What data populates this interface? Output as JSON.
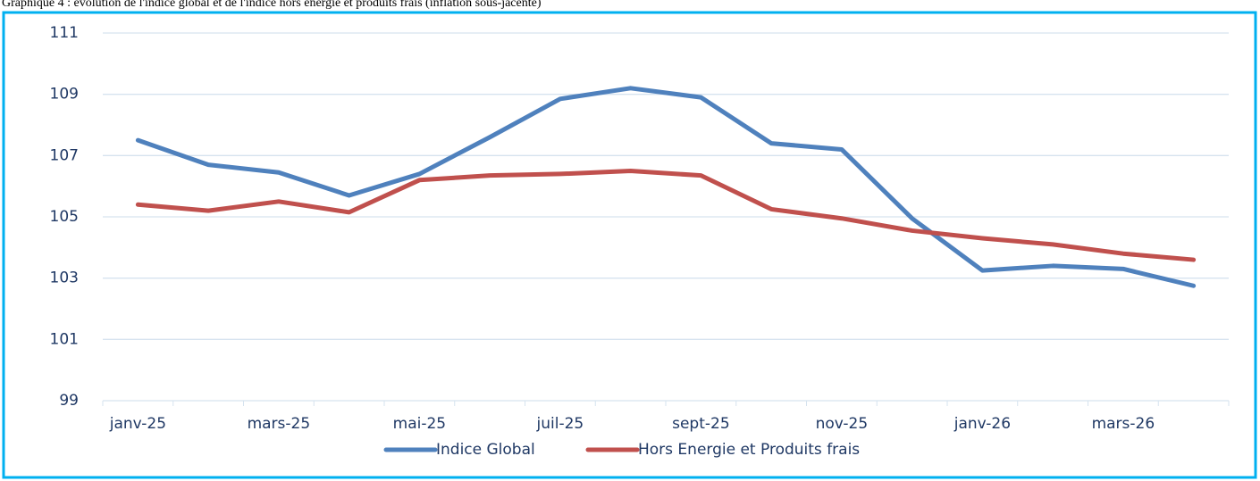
{
  "chart_data": {
    "type": "line",
    "title": "Graphique 4 : évolution de l'indice global et de l'indice hors énergie et produits frais (inflation sous-jacente)",
    "categories": [
      "janv-25",
      null,
      "mars-25",
      null,
      "mai-25",
      null,
      "juil-25",
      null,
      "sept-25",
      null,
      "nov-25",
      null,
      "janv-26",
      null,
      "mars-26",
      null
    ],
    "series": [
      {
        "name": "Indice Global",
        "color": "#4f81bd",
        "values": [
          107.5,
          106.7,
          106.45,
          105.7,
          106.4,
          107.6,
          108.85,
          109.2,
          108.9,
          107.4,
          107.2,
          104.95,
          103.25,
          103.4,
          103.3,
          102.75
        ]
      },
      {
        "name": "Hors Energie et Produits frais",
        "color": "#c0504d",
        "values": [
          105.4,
          105.2,
          105.5,
          105.15,
          106.2,
          106.35,
          106.4,
          106.5,
          106.35,
          105.25,
          104.95,
          104.55,
          104.3,
          104.1,
          103.8,
          103.6
        ]
      }
    ],
    "ylim": [
      99,
      111
    ],
    "yticks": [
      99,
      101,
      103,
      105,
      107,
      109,
      111
    ],
    "grid": true,
    "legend": "bottom"
  }
}
